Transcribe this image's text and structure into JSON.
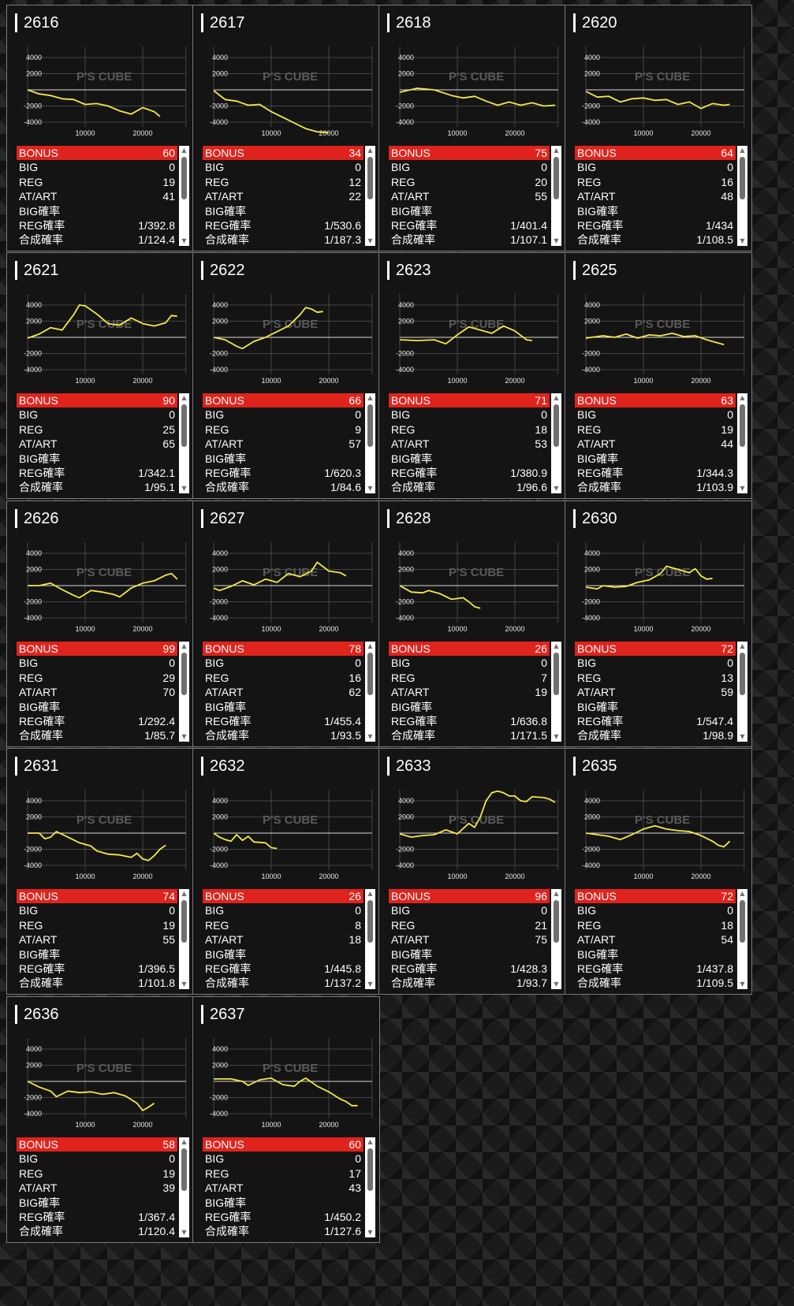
{
  "labels": {
    "bonus": "BONUS",
    "big": "BIG",
    "reg": "REG",
    "at": "AT/ART",
    "big_rate": "BIG確率",
    "reg_rate": "REG確率",
    "combined_rate": "合成確率"
  },
  "graph": {
    "y_ticks": [
      "4000",
      "2000",
      "-2000",
      "-4000"
    ],
    "x_ticks": [
      "10000",
      "20000"
    ],
    "watermark": "P'S CUBE",
    "line_color": "#f3e84a"
  },
  "machines": [
    {
      "id": "2616",
      "bonus": "60",
      "big": "0",
      "reg": "19",
      "at": "41",
      "big_rate": "",
      "reg_rate": "1/392.8",
      "combined_rate": "1/124.4",
      "trend": [
        [
          0,
          0
        ],
        [
          2000,
          -500
        ],
        [
          4000,
          -700
        ],
        [
          6000,
          -1100
        ],
        [
          8000,
          -1200
        ],
        [
          10000,
          -1800
        ],
        [
          12000,
          -1700
        ],
        [
          14000,
          -2000
        ],
        [
          16000,
          -2600
        ],
        [
          18000,
          -3000
        ],
        [
          20000,
          -2200
        ],
        [
          22000,
          -2700
        ],
        [
          23000,
          -3300
        ]
      ]
    },
    {
      "id": "2617",
      "bonus": "34",
      "big": "0",
      "reg": "12",
      "at": "22",
      "big_rate": "",
      "reg_rate": "1/530.6",
      "combined_rate": "1/187.3",
      "trend": [
        [
          0,
          -100
        ],
        [
          2000,
          -1200
        ],
        [
          4000,
          -1400
        ],
        [
          6000,
          -1900
        ],
        [
          8000,
          -1800
        ],
        [
          10000,
          -2700
        ],
        [
          12000,
          -3400
        ],
        [
          14000,
          -4100
        ],
        [
          16000,
          -4800
        ],
        [
          18000,
          -5200
        ],
        [
          20000,
          -5300
        ]
      ]
    },
    {
      "id": "2618",
      "bonus": "75",
      "big": "0",
      "reg": "20",
      "at": "55",
      "big_rate": "",
      "reg_rate": "1/401.4",
      "combined_rate": "1/107.1",
      "trend": [
        [
          0,
          -300
        ],
        [
          3000,
          200
        ],
        [
          6000,
          0
        ],
        [
          9000,
          -700
        ],
        [
          11000,
          -1000
        ],
        [
          13000,
          -800
        ],
        [
          15000,
          -1400
        ],
        [
          17000,
          -1900
        ],
        [
          19000,
          -1500
        ],
        [
          21000,
          -1900
        ],
        [
          23000,
          -1600
        ],
        [
          25000,
          -2000
        ],
        [
          27000,
          -1900
        ]
      ]
    },
    {
      "id": "2620",
      "bonus": "64",
      "big": "0",
      "reg": "16",
      "at": "48",
      "big_rate": "",
      "reg_rate": "1/434",
      "combined_rate": "1/108.5",
      "trend": [
        [
          0,
          -200
        ],
        [
          2000,
          -900
        ],
        [
          4000,
          -800
        ],
        [
          6000,
          -1500
        ],
        [
          8000,
          -1100
        ],
        [
          10000,
          -1000
        ],
        [
          12000,
          -1300
        ],
        [
          14000,
          -1200
        ],
        [
          16000,
          -1800
        ],
        [
          18000,
          -1500
        ],
        [
          20000,
          -2300
        ],
        [
          22000,
          -1700
        ],
        [
          24000,
          -1900
        ],
        [
          25000,
          -1800
        ]
      ]
    },
    {
      "id": "2621",
      "bonus": "90",
      "big": "0",
      "reg": "25",
      "at": "65",
      "big_rate": "",
      "reg_rate": "1/342.1",
      "combined_rate": "1/95.1",
      "trend": [
        [
          0,
          -100
        ],
        [
          2000,
          400
        ],
        [
          4000,
          1200
        ],
        [
          6000,
          900
        ],
        [
          8000,
          2800
        ],
        [
          9000,
          4000
        ],
        [
          10000,
          3900
        ],
        [
          12000,
          2900
        ],
        [
          14000,
          1700
        ],
        [
          16000,
          1500
        ],
        [
          18000,
          2400
        ],
        [
          20000,
          1700
        ],
        [
          22000,
          1400
        ],
        [
          24000,
          1800
        ],
        [
          25000,
          2700
        ],
        [
          26000,
          2600
        ]
      ]
    },
    {
      "id": "2622",
      "bonus": "66",
      "big": "0",
      "reg": "9",
      "at": "57",
      "big_rate": "",
      "reg_rate": "1/620.3",
      "combined_rate": "1/84.6",
      "trend": [
        [
          0,
          0
        ],
        [
          2000,
          -300
        ],
        [
          4000,
          -1100
        ],
        [
          5000,
          -1400
        ],
        [
          7000,
          -500
        ],
        [
          9000,
          0
        ],
        [
          11000,
          700
        ],
        [
          13000,
          1400
        ],
        [
          15000,
          2800
        ],
        [
          16000,
          3700
        ],
        [
          17000,
          3500
        ],
        [
          18000,
          3100
        ],
        [
          19000,
          3200
        ]
      ]
    },
    {
      "id": "2623",
      "bonus": "71",
      "big": "0",
      "reg": "18",
      "at": "53",
      "big_rate": "",
      "reg_rate": "1/380.9",
      "combined_rate": "1/96.6",
      "trend": [
        [
          0,
          -300
        ],
        [
          3000,
          -400
        ],
        [
          6000,
          -300
        ],
        [
          8000,
          -800
        ],
        [
          10000,
          300
        ],
        [
          12000,
          1300
        ],
        [
          14000,
          900
        ],
        [
          16000,
          500
        ],
        [
          18000,
          1400
        ],
        [
          20000,
          800
        ],
        [
          22000,
          -300
        ],
        [
          23000,
          -400
        ]
      ]
    },
    {
      "id": "2625",
      "bonus": "63",
      "big": "0",
      "reg": "19",
      "at": "44",
      "big_rate": "",
      "reg_rate": "1/344.3",
      "combined_rate": "1/103.9",
      "trend": [
        [
          0,
          -100
        ],
        [
          3000,
          200
        ],
        [
          5000,
          0
        ],
        [
          7000,
          400
        ],
        [
          9000,
          -100
        ],
        [
          11000,
          300
        ],
        [
          13000,
          200
        ],
        [
          15000,
          500
        ],
        [
          17000,
          100
        ],
        [
          19000,
          200
        ],
        [
          21000,
          -300
        ],
        [
          23000,
          -700
        ],
        [
          24000,
          -900
        ]
      ]
    },
    {
      "id": "2626",
      "bonus": "99",
      "big": "0",
      "reg": "29",
      "at": "70",
      "big_rate": "",
      "reg_rate": "1/292.4",
      "combined_rate": "1/85.7",
      "trend": [
        [
          0,
          0
        ],
        [
          2000,
          0
        ],
        [
          4000,
          300
        ],
        [
          6000,
          -500
        ],
        [
          8000,
          -1200
        ],
        [
          9000,
          -1500
        ],
        [
          11000,
          -600
        ],
        [
          13000,
          -800
        ],
        [
          15000,
          -1100
        ],
        [
          16000,
          -1400
        ],
        [
          18000,
          -300
        ],
        [
          20000,
          300
        ],
        [
          22000,
          600
        ],
        [
          24000,
          1300
        ],
        [
          25000,
          1500
        ],
        [
          26000,
          800
        ]
      ]
    },
    {
      "id": "2627",
      "bonus": "78",
      "big": "0",
      "reg": "16",
      "at": "62",
      "big_rate": "",
      "reg_rate": "1/455.4",
      "combined_rate": "1/93.5",
      "trend": [
        [
          0,
          -300
        ],
        [
          1000,
          -600
        ],
        [
          3000,
          -100
        ],
        [
          5000,
          600
        ],
        [
          7000,
          100
        ],
        [
          9000,
          800
        ],
        [
          11000,
          400
        ],
        [
          13000,
          1500
        ],
        [
          15000,
          1100
        ],
        [
          17000,
          1800
        ],
        [
          18000,
          2900
        ],
        [
          20000,
          1800
        ],
        [
          22000,
          1600
        ],
        [
          23000,
          1200
        ]
      ]
    },
    {
      "id": "2628",
      "bonus": "26",
      "big": "0",
      "reg": "7",
      "at": "19",
      "big_rate": "",
      "reg_rate": "1/636.8",
      "combined_rate": "1/171.5",
      "trend": [
        [
          0,
          0
        ],
        [
          2000,
          -800
        ],
        [
          4000,
          -900
        ],
        [
          5000,
          -600
        ],
        [
          7000,
          -1000
        ],
        [
          9000,
          -1700
        ],
        [
          11000,
          -1500
        ],
        [
          12000,
          -2000
        ],
        [
          13000,
          -2600
        ],
        [
          14000,
          -2800
        ]
      ]
    },
    {
      "id": "2630",
      "bonus": "72",
      "big": "0",
      "reg": "13",
      "at": "59",
      "big_rate": "",
      "reg_rate": "1/547.4",
      "combined_rate": "1/98.9",
      "trend": [
        [
          0,
          -200
        ],
        [
          2000,
          -400
        ],
        [
          3000,
          0
        ],
        [
          5000,
          -200
        ],
        [
          7000,
          -100
        ],
        [
          9000,
          400
        ],
        [
          11000,
          700
        ],
        [
          13000,
          1500
        ],
        [
          14000,
          2400
        ],
        [
          16000,
          2000
        ],
        [
          18000,
          1600
        ],
        [
          19000,
          2100
        ],
        [
          20000,
          1200
        ],
        [
          21000,
          800
        ],
        [
          22000,
          900
        ]
      ]
    },
    {
      "id": "2631",
      "bonus": "74",
      "big": "0",
      "reg": "19",
      "at": "55",
      "big_rate": "",
      "reg_rate": "1/396.5",
      "combined_rate": "1/101.8",
      "trend": [
        [
          0,
          0
        ],
        [
          2000,
          0
        ],
        [
          3000,
          -700
        ],
        [
          4000,
          -500
        ],
        [
          5000,
          200
        ],
        [
          7000,
          -500
        ],
        [
          9000,
          -1200
        ],
        [
          11000,
          -1600
        ],
        [
          12000,
          -2200
        ],
        [
          14000,
          -2600
        ],
        [
          16000,
          -2700
        ],
        [
          18000,
          -3000
        ],
        [
          19000,
          -2500
        ],
        [
          20000,
          -3200
        ],
        [
          21000,
          -3400
        ],
        [
          22000,
          -2800
        ],
        [
          23000,
          -2000
        ],
        [
          24000,
          -1500
        ]
      ]
    },
    {
      "id": "2632",
      "bonus": "26",
      "big": "0",
      "reg": "8",
      "at": "18",
      "big_rate": "",
      "reg_rate": "1/445.8",
      "combined_rate": "1/137.2",
      "trend": [
        [
          0,
          0
        ],
        [
          1000,
          -500
        ],
        [
          2000,
          -800
        ],
        [
          3000,
          -1000
        ],
        [
          4000,
          -200
        ],
        [
          5000,
          -900
        ],
        [
          6000,
          -400
        ],
        [
          7000,
          -1100
        ],
        [
          9000,
          -1200
        ],
        [
          10000,
          -1800
        ],
        [
          11000,
          -1900
        ]
      ]
    },
    {
      "id": "2633",
      "bonus": "96",
      "big": "0",
      "reg": "21",
      "at": "75",
      "big_rate": "",
      "reg_rate": "1/428.3",
      "combined_rate": "1/93.7",
      "trend": [
        [
          0,
          -100
        ],
        [
          2000,
          -500
        ],
        [
          4000,
          -300
        ],
        [
          6000,
          -200
        ],
        [
          8000,
          400
        ],
        [
          10000,
          -100
        ],
        [
          12000,
          1200
        ],
        [
          13000,
          700
        ],
        [
          14000,
          2000
        ],
        [
          15000,
          4000
        ],
        [
          16000,
          5000
        ],
        [
          17000,
          5200
        ],
        [
          18000,
          5000
        ],
        [
          19000,
          4600
        ],
        [
          20000,
          4600
        ],
        [
          21000,
          4000
        ],
        [
          22000,
          3900
        ],
        [
          23000,
          4500
        ],
        [
          25000,
          4400
        ],
        [
          26000,
          4200
        ],
        [
          27000,
          3800
        ]
      ]
    },
    {
      "id": "2635",
      "bonus": "72",
      "big": "0",
      "reg": "18",
      "at": "54",
      "big_rate": "",
      "reg_rate": "1/437.8",
      "combined_rate": "1/109.5",
      "trend": [
        [
          0,
          0
        ],
        [
          2000,
          -200
        ],
        [
          4000,
          -400
        ],
        [
          6000,
          -800
        ],
        [
          8000,
          -200
        ],
        [
          10000,
          500
        ],
        [
          12000,
          900
        ],
        [
          14000,
          500
        ],
        [
          16000,
          300
        ],
        [
          18000,
          200
        ],
        [
          20000,
          -300
        ],
        [
          22000,
          -1000
        ],
        [
          23000,
          -1500
        ],
        [
          24000,
          -1700
        ],
        [
          25000,
          -1000
        ]
      ]
    },
    {
      "id": "2636",
      "bonus": "58",
      "big": "0",
      "reg": "19",
      "at": "39",
      "big_rate": "",
      "reg_rate": "1/367.4",
      "combined_rate": "1/120.4",
      "trend": [
        [
          0,
          0
        ],
        [
          2000,
          -700
        ],
        [
          4000,
          -1200
        ],
        [
          5000,
          -1900
        ],
        [
          7000,
          -1200
        ],
        [
          9000,
          -1400
        ],
        [
          11000,
          -1300
        ],
        [
          13000,
          -1600
        ],
        [
          15000,
          -1400
        ],
        [
          17000,
          -1800
        ],
        [
          19000,
          -2700
        ],
        [
          20000,
          -3600
        ],
        [
          21000,
          -3200
        ],
        [
          22000,
          -2700
        ]
      ]
    },
    {
      "id": "2637",
      "bonus": "60",
      "big": "0",
      "reg": "17",
      "at": "43",
      "big_rate": "",
      "reg_rate": "1/450.2",
      "combined_rate": "1/127.6",
      "trend": [
        [
          0,
          300
        ],
        [
          3000,
          300
        ],
        [
          5000,
          0
        ],
        [
          6000,
          -500
        ],
        [
          8000,
          200
        ],
        [
          10000,
          400
        ],
        [
          12000,
          -400
        ],
        [
          14000,
          -600
        ],
        [
          15000,
          0
        ],
        [
          16000,
          400
        ],
        [
          18000,
          -600
        ],
        [
          20000,
          -1300
        ],
        [
          22000,
          -2200
        ],
        [
          23000,
          -2500
        ],
        [
          24000,
          -3000
        ],
        [
          25000,
          -3000
        ]
      ]
    }
  ]
}
